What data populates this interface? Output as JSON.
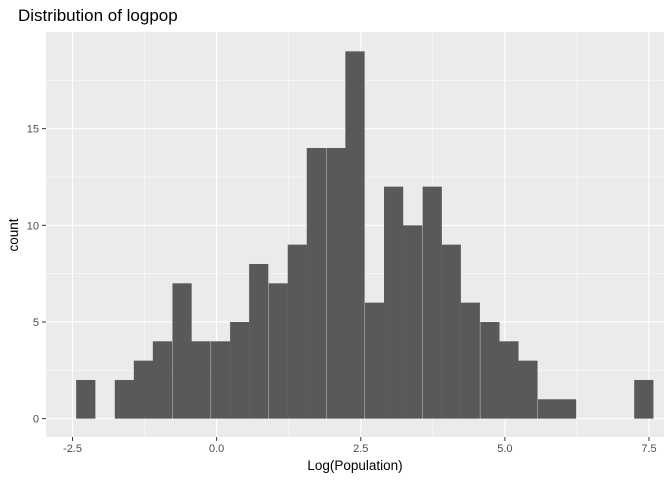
{
  "chart_data": {
    "type": "bar",
    "title": "Distribution of logpop",
    "xlabel": "Log(Population)",
    "ylabel": "count",
    "xlim": [
      -2.96,
      7.76
    ],
    "ylim": [
      -0.95,
      20
    ],
    "x_ticks": [
      -2.5,
      0.0,
      2.5,
      5.0,
      7.5
    ],
    "x_tick_labels": [
      "-2.5",
      "0.0",
      "2.5",
      "5.0",
      "7.5"
    ],
    "y_ticks": [
      0,
      5,
      10,
      15
    ],
    "y_tick_labels": [
      "0",
      "5",
      "10",
      "15"
    ],
    "grid": true,
    "bin_width": 0.3333,
    "bins": [
      {
        "center": -2.27,
        "count": 2
      },
      {
        "center": -1.94,
        "count": 0
      },
      {
        "center": -1.6,
        "count": 2
      },
      {
        "center": -1.27,
        "count": 3
      },
      {
        "center": -0.94,
        "count": 4
      },
      {
        "center": -0.6,
        "count": 7
      },
      {
        "center": -0.27,
        "count": 4
      },
      {
        "center": 0.07,
        "count": 4
      },
      {
        "center": 0.4,
        "count": 5
      },
      {
        "center": 0.73,
        "count": 8
      },
      {
        "center": 1.07,
        "count": 7
      },
      {
        "center": 1.4,
        "count": 9
      },
      {
        "center": 1.73,
        "count": 14
      },
      {
        "center": 2.07,
        "count": 14
      },
      {
        "center": 2.4,
        "count": 19
      },
      {
        "center": 2.74,
        "count": 6
      },
      {
        "center": 3.07,
        "count": 12
      },
      {
        "center": 3.4,
        "count": 10
      },
      {
        "center": 3.74,
        "count": 12
      },
      {
        "center": 4.07,
        "count": 9
      },
      {
        "center": 4.4,
        "count": 6
      },
      {
        "center": 4.74,
        "count": 5
      },
      {
        "center": 5.07,
        "count": 4
      },
      {
        "center": 5.4,
        "count": 3
      },
      {
        "center": 5.74,
        "count": 1
      },
      {
        "center": 6.07,
        "count": 1
      },
      {
        "center": 6.4,
        "count": 0
      },
      {
        "center": 6.74,
        "count": 0
      },
      {
        "center": 7.07,
        "count": 0
      },
      {
        "center": 7.41,
        "count": 2
      }
    ]
  }
}
